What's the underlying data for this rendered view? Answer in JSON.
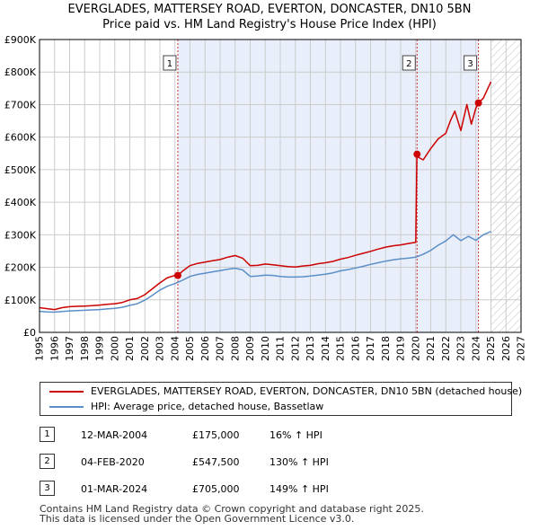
{
  "chart_data": {
    "type": "line",
    "title": "EVERGLADES, MATTERSEY ROAD, EVERTON, DONCASTER, DN10 5BN",
    "subtitle": "Price paid vs. HM Land Registry's House Price Index (HPI)",
    "xlabel": "",
    "ylabel": "",
    "xlim": [
      1995,
      2027
    ],
    "ylim": [
      0,
      900000
    ],
    "x_ticks": [
      1995,
      1996,
      1997,
      1998,
      1999,
      2000,
      2001,
      2002,
      2003,
      2004,
      2005,
      2006,
      2007,
      2008,
      2009,
      2010,
      2011,
      2012,
      2013,
      2014,
      2015,
      2016,
      2017,
      2018,
      2019,
      2020,
      2021,
      2022,
      2023,
      2024,
      2025,
      2026,
      2027
    ],
    "y_ticks": [
      {
        "value": 0,
        "label": "£0"
      },
      {
        "value": 100000,
        "label": "£100K"
      },
      {
        "value": 200000,
        "label": "£200K"
      },
      {
        "value": 300000,
        "label": "£300K"
      },
      {
        "value": 400000,
        "label": "£400K"
      },
      {
        "value": 500000,
        "label": "£500K"
      },
      {
        "value": 600000,
        "label": "£600K"
      },
      {
        "value": 700000,
        "label": "£700K"
      },
      {
        "value": 800000,
        "label": "£800K"
      },
      {
        "value": 900000,
        "label": "£900K"
      }
    ],
    "grid": true,
    "shaded_ranges": [
      {
        "from": 2004.19,
        "to": 2024.17,
        "color": "#e8eefa"
      }
    ],
    "future_hatch": {
      "from": 2025.0,
      "to": 2027.0
    },
    "series": [
      {
        "name": "EVERGLADES, MATTERSEY ROAD, EVERTON, DONCASTER, DN10 5BN (detached house)",
        "color": "#cc0000",
        "x": [
          1995.0,
          1995.5,
          1996.0,
          1996.5,
          1997.0,
          1997.5,
          1998.0,
          1998.5,
          1999.0,
          1999.5,
          2000.0,
          2000.5,
          2001.0,
          2001.5,
          2002.0,
          2002.5,
          2003.0,
          2003.5,
          2004.0,
          2004.19,
          2004.5,
          2005.0,
          2005.5,
          2006.0,
          2006.5,
          2007.0,
          2007.5,
          2008.0,
          2008.5,
          2009.0,
          2009.5,
          2010.0,
          2010.5,
          2011.0,
          2011.5,
          2012.0,
          2012.5,
          2013.0,
          2013.5,
          2014.0,
          2014.5,
          2015.0,
          2015.5,
          2016.0,
          2016.5,
          2017.0,
          2017.5,
          2018.0,
          2018.5,
          2019.0,
          2019.5,
          2020.0,
          2020.08,
          2020.1,
          2020.5,
          2021.0,
          2021.5,
          2022.0,
          2022.3,
          2022.6,
          2023.0,
          2023.4,
          2023.7,
          2024.0,
          2024.17,
          2024.5,
          2024.8,
          2025.0
        ],
        "values": [
          76000,
          73000,
          70000,
          76000,
          79000,
          80000,
          81000,
          82000,
          84000,
          86000,
          88000,
          92000,
          100000,
          104000,
          116000,
          134000,
          152000,
          168000,
          175000,
          175000,
          188000,
          205000,
          212000,
          216000,
          220000,
          224000,
          231000,
          236000,
          228000,
          205000,
          206000,
          210000,
          208000,
          205000,
          202000,
          201000,
          204000,
          206000,
          211000,
          214000,
          218000,
          225000,
          230000,
          237000,
          243000,
          249000,
          256000,
          262000,
          266000,
          269000,
          273000,
          277000,
          547500,
          540000,
          530000,
          565000,
          595000,
          612000,
          650000,
          680000,
          620000,
          700000,
          640000,
          690000,
          705000,
          720000,
          750000,
          770000
        ]
      },
      {
        "name": "HPI: Average price, detached house, Bassetlaw",
        "color": "#5b8fc9",
        "x": [
          1995.0,
          1995.5,
          1996.0,
          1996.5,
          1997.0,
          1997.5,
          1998.0,
          1998.5,
          1999.0,
          1999.5,
          2000.0,
          2000.5,
          2001.0,
          2001.5,
          2002.0,
          2002.5,
          2003.0,
          2003.5,
          2004.0,
          2004.5,
          2005.0,
          2005.5,
          2006.0,
          2006.5,
          2007.0,
          2007.5,
          2008.0,
          2008.5,
          2009.0,
          2009.5,
          2010.0,
          2010.5,
          2011.0,
          2011.5,
          2012.0,
          2012.5,
          2013.0,
          2013.5,
          2014.0,
          2014.5,
          2015.0,
          2015.5,
          2016.0,
          2016.5,
          2017.0,
          2017.5,
          2018.0,
          2018.5,
          2019.0,
          2019.5,
          2020.0,
          2020.5,
          2021.0,
          2021.5,
          2022.0,
          2022.5,
          2023.0,
          2023.5,
          2024.0,
          2024.5,
          2025.0
        ],
        "values": [
          65000,
          63000,
          62000,
          64000,
          66000,
          67000,
          68000,
          69000,
          70000,
          72000,
          74000,
          77000,
          83000,
          88000,
          99000,
          114000,
          130000,
          142000,
          150000,
          160000,
          172000,
          178000,
          182000,
          186000,
          190000,
          194000,
          197000,
          192000,
          172000,
          173000,
          176000,
          175000,
          172000,
          170000,
          170000,
          171000,
          173000,
          176000,
          179000,
          183000,
          189000,
          193000,
          198000,
          203000,
          209000,
          214000,
          219000,
          223000,
          226000,
          228000,
          231000,
          240000,
          252000,
          268000,
          281000,
          300000,
          282000,
          295000,
          283000,
          300000,
          310000
        ]
      }
    ],
    "markers": [
      {
        "label": "1",
        "x": 2004.19,
        "value": 175000
      },
      {
        "label": "2",
        "x": 2020.09,
        "value": 547500
      },
      {
        "label": "3",
        "x": 2024.17,
        "value": 705000
      }
    ]
  },
  "legend": {
    "property_label": "EVERGLADES, MATTERSEY ROAD, EVERTON, DONCASTER, DN10 5BN (detached house)",
    "hpi_label": "HPI: Average price, detached house, Bassetlaw",
    "property_color": "#cc0000",
    "hpi_color": "#5b8fc9"
  },
  "transactions": [
    {
      "num": "1",
      "date": "12-MAR-2004",
      "price": "£175,000",
      "hpi": "16% ↑ HPI"
    },
    {
      "num": "2",
      "date": "04-FEB-2020",
      "price": "£547,500",
      "hpi": "130% ↑ HPI"
    },
    {
      "num": "3",
      "date": "01-MAR-2024",
      "price": "£705,000",
      "hpi": "149% ↑ HPI"
    }
  ],
  "footer": {
    "line1": "Contains HM Land Registry data © Crown copyright and database right 2025.",
    "line2": "This data is licensed under the Open Government Licence v3.0."
  }
}
